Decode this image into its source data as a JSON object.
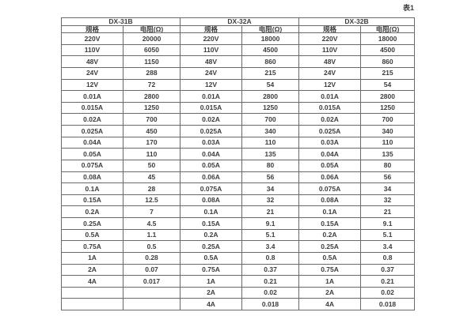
{
  "caption": "表1",
  "colors": {
    "background": "#ffffff",
    "border": "#6a6a6a",
    "text": "#3d3d3d"
  },
  "table": {
    "groups": [
      {
        "name": "DX-31B",
        "headers": [
          "规格",
          "电阻(Ω)"
        ]
      },
      {
        "name": "DX-32A",
        "headers": [
          "规格",
          "电阻(Ω)"
        ]
      },
      {
        "name": "DX-32B",
        "headers": [
          "规格",
          "电阻(Ω)"
        ]
      }
    ],
    "rows": [
      [
        "220V",
        "20000",
        "220V",
        "18000",
        "220V",
        "18000"
      ],
      [
        "110V",
        "6050",
        "110V",
        "4500",
        "110V",
        "4500"
      ],
      [
        "48V",
        "1150",
        "48V",
        "860",
        "48V",
        "860"
      ],
      [
        "24V",
        "288",
        "24V",
        "215",
        "24V",
        "215"
      ],
      [
        "12V",
        "72",
        "12V",
        "54",
        "12V",
        "54"
      ],
      [
        "0.01A",
        "2800",
        "0.01A",
        "2800",
        "0.01A",
        "2800"
      ],
      [
        "0.015A",
        "1250",
        "0.015A",
        "1250",
        "0.015A",
        "1250"
      ],
      [
        "0.02A",
        "700",
        "0.02A",
        "700",
        "0.02A",
        "700"
      ],
      [
        "0.025A",
        "450",
        "0.025A",
        "340",
        "0.025A",
        "340"
      ],
      [
        "0.04A",
        "170",
        "0.03A",
        "110",
        "0.03A",
        "110"
      ],
      [
        "0.05A",
        "110",
        "0.04A",
        "135",
        "0.04A",
        "135"
      ],
      [
        "0.075A",
        "50",
        "0.05A",
        "80",
        "0.05A",
        "80"
      ],
      [
        "0.08A",
        "45",
        "0.06A",
        "56",
        "0.06A",
        "56"
      ],
      [
        "0.1A",
        "28",
        "0.075A",
        "34",
        "0.075A",
        "34"
      ],
      [
        "0.15A",
        "12.5",
        "0.08A",
        "32",
        "0.08A",
        "32"
      ],
      [
        "0.2A",
        "7",
        "0.1A",
        "21",
        "0.1A",
        "21"
      ],
      [
        "0.25A",
        "4.5",
        "0.15A",
        "9.1",
        "0.15A",
        "9.1"
      ],
      [
        "0.5A",
        "1.1",
        "0.2A",
        "5.1",
        "0.2A",
        "5.1"
      ],
      [
        "0.75A",
        "0.5",
        "0.25A",
        "3.4",
        "0.25A",
        "3.4"
      ],
      [
        "1A",
        "0.28",
        "0.5A",
        "0.8",
        "0.5A",
        "0.8"
      ],
      [
        "2A",
        "0.07",
        "0.75A",
        "0.37",
        "0.75A",
        "0.37"
      ],
      [
        "4A",
        "0.017",
        "1A",
        "0.21",
        "1A",
        "0.21"
      ],
      [
        "",
        "",
        "2A",
        "0.02",
        "2A",
        "0.02"
      ],
      [
        "",
        "",
        "4A",
        "0.018",
        "4A",
        "0.018"
      ]
    ]
  }
}
